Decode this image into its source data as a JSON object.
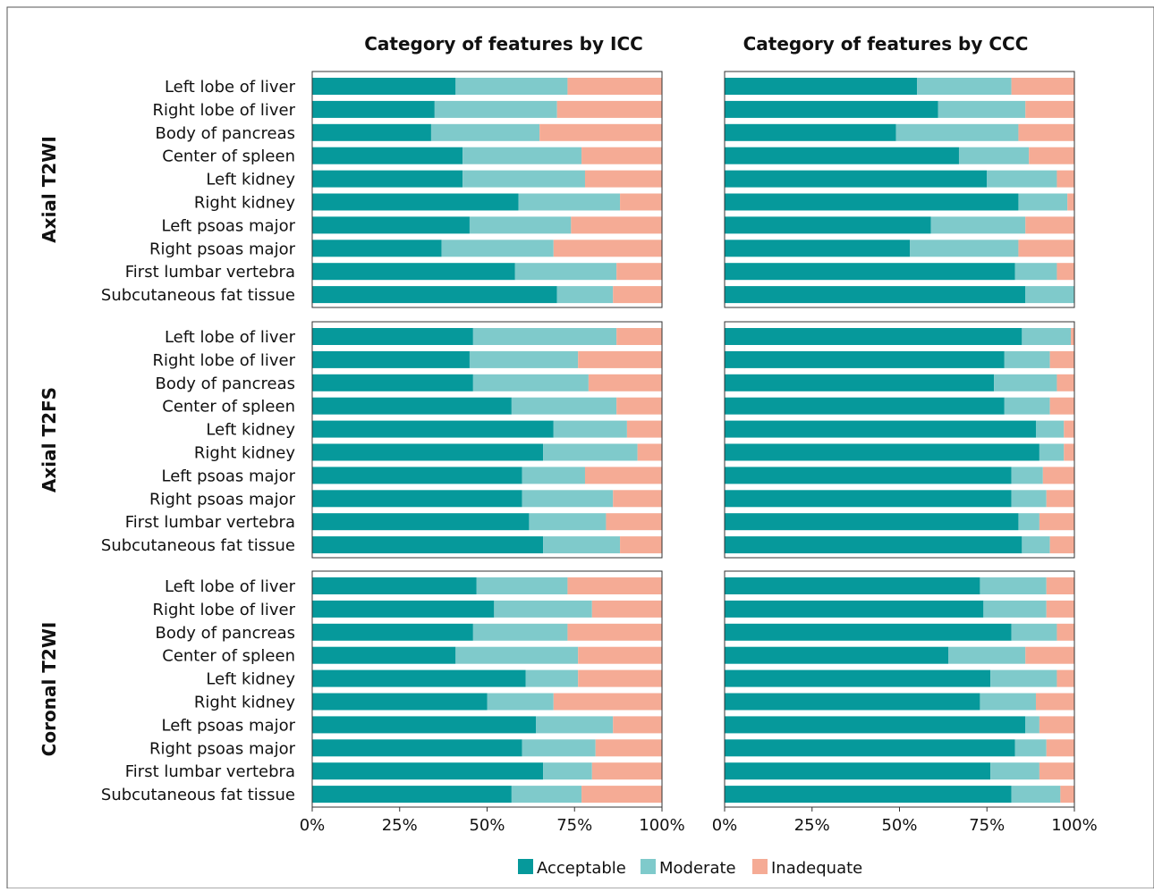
{
  "colors": {
    "acceptable": "#06999b",
    "moderate": "#7fcacb",
    "inadequate": "#f5ab95",
    "frame": "#333333",
    "text": "#111111"
  },
  "legend": {
    "acceptable": "Acceptable",
    "moderate": "Moderate",
    "inadequate": "Inadequate"
  },
  "chart_data": {
    "type": "bar",
    "orientation": "horizontal",
    "stacked": true,
    "column_titles": [
      "Category of features by ICC",
      "Category of features by CCC"
    ],
    "row_groups": [
      "Axial T2WI",
      "Axial T2FS",
      "Coronal T2WI"
    ],
    "categories": [
      "Left lobe of liver",
      "Right lobe of liver",
      "Body of pancreas",
      "Center of spleen",
      "Left kidney",
      "Right kidney",
      "Left psoas major",
      "Right psoas major",
      "First lumbar vertebra",
      "Subcutaneous fat tissue"
    ],
    "xlim": [
      0,
      100
    ],
    "x_ticks": [
      "0%",
      "25%",
      "50%",
      "75%",
      "100%"
    ],
    "legend_position": "bottom",
    "panels": [
      {
        "column": "ICC",
        "group": "Axial T2WI",
        "series": [
          {
            "name": "Acceptable",
            "values": [
              41,
              35,
              34,
              43,
              43,
              59,
              45,
              37,
              58,
              70
            ]
          },
          {
            "name": "Moderate",
            "values": [
              32,
              35,
              31,
              34,
              35,
              29,
              29,
              32,
              29,
              16
            ]
          },
          {
            "name": "Inadequate",
            "values": [
              27,
              30,
              35,
              23,
              22,
              12,
              26,
              31,
              13,
              14
            ]
          }
        ]
      },
      {
        "column": "CCC",
        "group": "Axial T2WI",
        "series": [
          {
            "name": "Acceptable",
            "values": [
              55,
              61,
              49,
              67,
              75,
              84,
              59,
              53,
              83,
              86
            ]
          },
          {
            "name": "Moderate",
            "values": [
              27,
              25,
              35,
              20,
              20,
              14,
              27,
              31,
              12,
              14
            ]
          },
          {
            "name": "Inadequate",
            "values": [
              18,
              14,
              16,
              13,
              5,
              2,
              14,
              16,
              5,
              0
            ]
          }
        ]
      },
      {
        "column": "ICC",
        "group": "Axial T2FS",
        "series": [
          {
            "name": "Acceptable",
            "values": [
              46,
              45,
              46,
              57,
              69,
              66,
              60,
              60,
              62,
              66
            ]
          },
          {
            "name": "Moderate",
            "values": [
              41,
              31,
              33,
              30,
              21,
              27,
              18,
              26,
              22,
              22
            ]
          },
          {
            "name": "Inadequate",
            "values": [
              13,
              24,
              21,
              13,
              10,
              7,
              22,
              14,
              16,
              12
            ]
          }
        ]
      },
      {
        "column": "CCC",
        "group": "Axial T2FS",
        "series": [
          {
            "name": "Acceptable",
            "values": [
              85,
              80,
              77,
              80,
              89,
              90,
              82,
              82,
              84,
              85
            ]
          },
          {
            "name": "Moderate",
            "values": [
              14,
              13,
              18,
              13,
              8,
              7,
              9,
              10,
              6,
              8
            ]
          },
          {
            "name": "Inadequate",
            "values": [
              1,
              7,
              5,
              7,
              3,
              3,
              9,
              8,
              10,
              7
            ]
          }
        ]
      },
      {
        "column": "ICC",
        "group": "Coronal T2WI",
        "series": [
          {
            "name": "Acceptable",
            "values": [
              47,
              52,
              46,
              41,
              61,
              50,
              64,
              60,
              66,
              57
            ]
          },
          {
            "name": "Moderate",
            "values": [
              26,
              28,
              27,
              35,
              15,
              19,
              22,
              21,
              14,
              20
            ]
          },
          {
            "name": "Inadequate",
            "values": [
              27,
              20,
              27,
              24,
              24,
              31,
              14,
              19,
              20,
              23
            ]
          }
        ]
      },
      {
        "column": "CCC",
        "group": "Coronal T2WI",
        "series": [
          {
            "name": "Acceptable",
            "values": [
              73,
              74,
              82,
              64,
              76,
              73,
              86,
              83,
              76,
              82
            ]
          },
          {
            "name": "Moderate",
            "values": [
              19,
              18,
              13,
              22,
              19,
              16,
              4,
              9,
              14,
              14
            ]
          },
          {
            "name": "Inadequate",
            "values": [
              8,
              8,
              5,
              14,
              5,
              11,
              10,
              8,
              10,
              4
            ]
          }
        ]
      }
    ]
  }
}
